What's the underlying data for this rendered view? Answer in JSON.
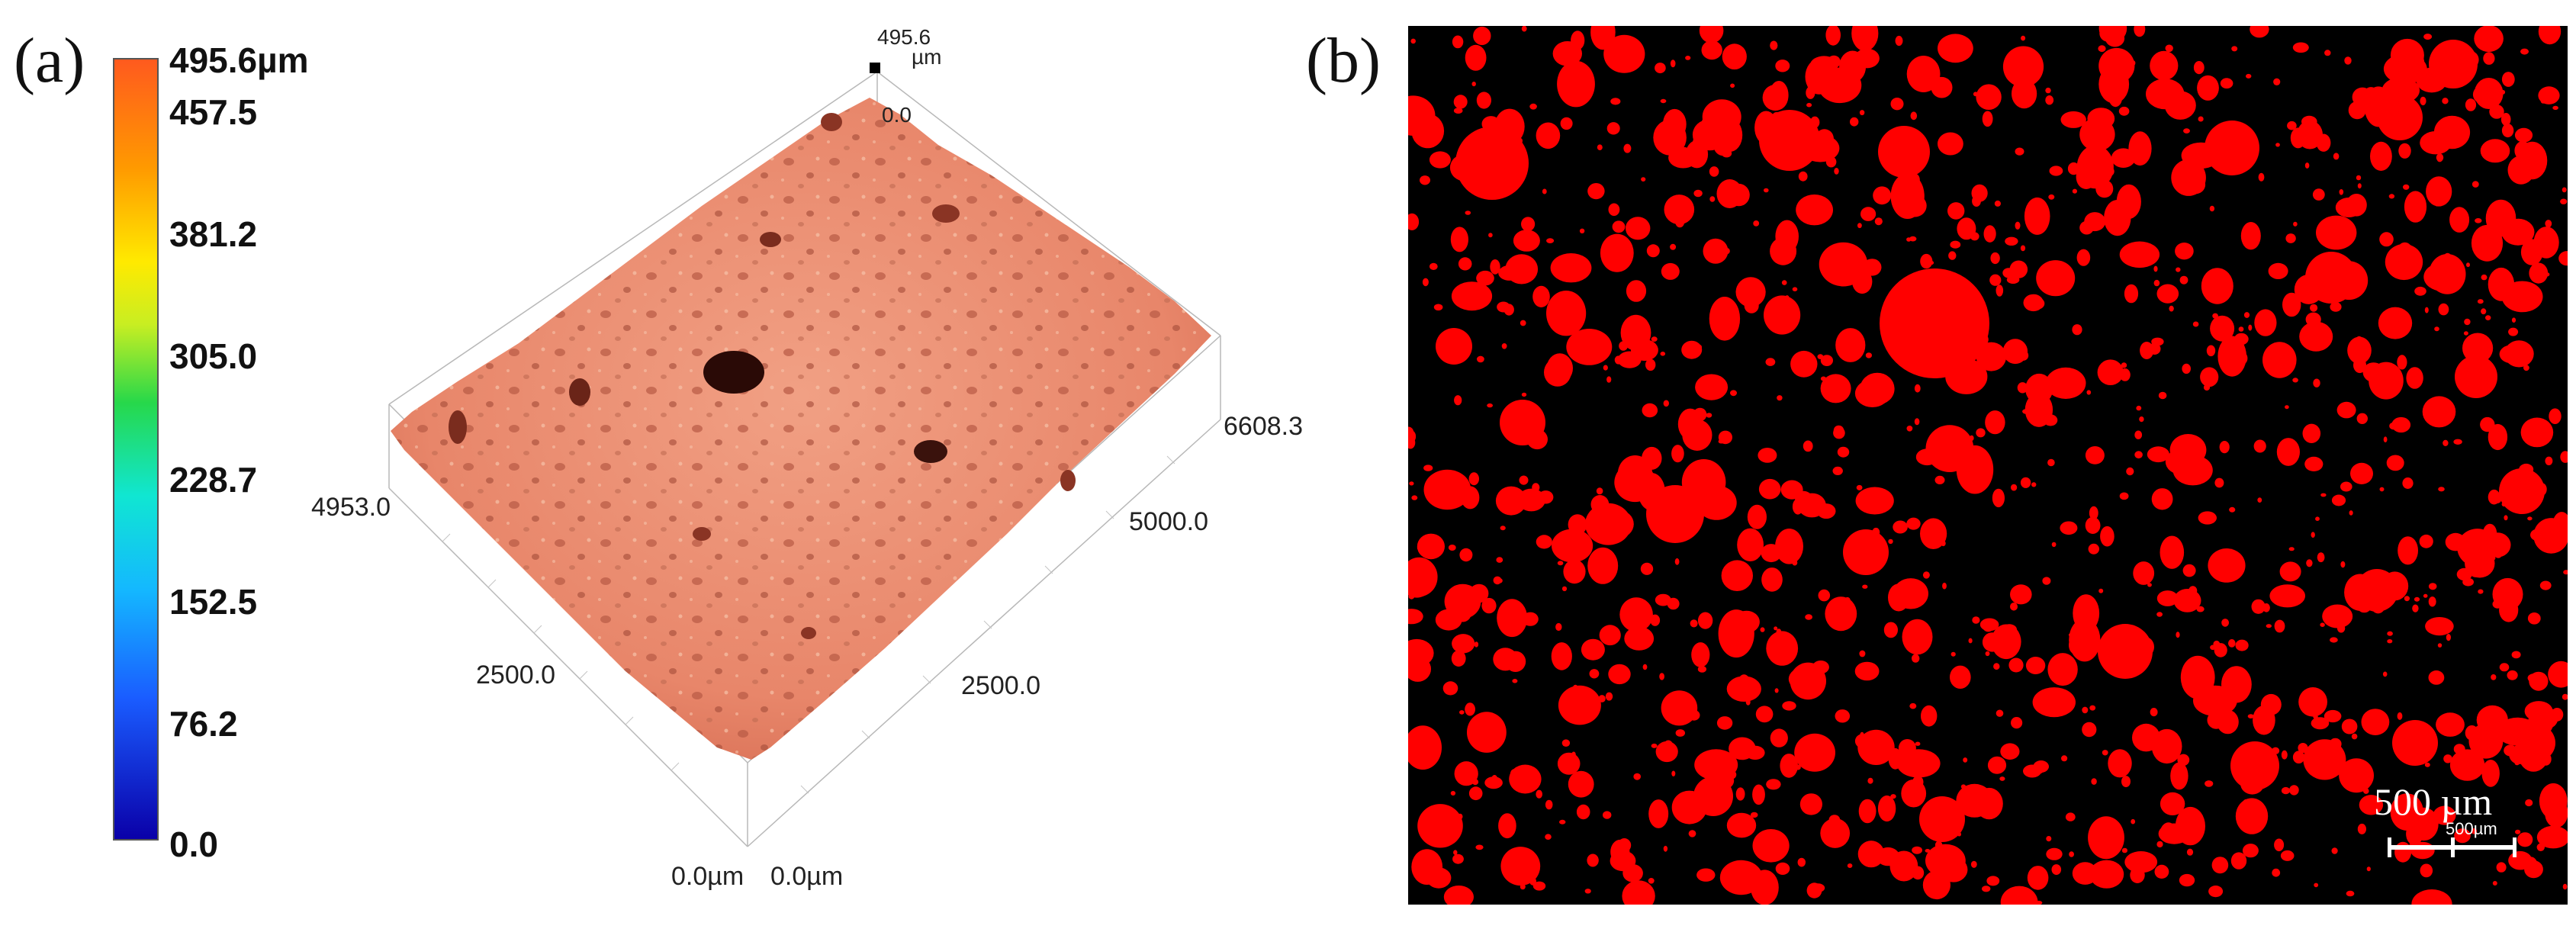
{
  "panels": {
    "a": {
      "label": "(a)"
    },
    "b": {
      "label": "(b)"
    }
  },
  "color_scale": {
    "ticks": [
      "495.6µm",
      "457.5",
      "381.2",
      "305.0",
      "228.7",
      "152.5",
      "76.2",
      "0.0"
    ],
    "colors": {
      "min": "#0a00a8",
      "mid": "#27d84a",
      "max": "#ff5a1e"
    }
  },
  "surface_3d": {
    "z_max_value": "495.6",
    "z_max_unit": "µm",
    "z_zero": "0.0",
    "x_labels": [
      "6608.3",
      "5000.0",
      "2500.0"
    ],
    "y_labels": [
      "4953.0",
      "2500.0"
    ],
    "origin_labels": [
      "0.0µm",
      "0.0µm"
    ],
    "surface_color": "#e8866a"
  },
  "binary_image": {
    "background": "#000000",
    "particle_color": "#ff0000",
    "scale_text": "500 µm",
    "scale_small": "500µm"
  }
}
